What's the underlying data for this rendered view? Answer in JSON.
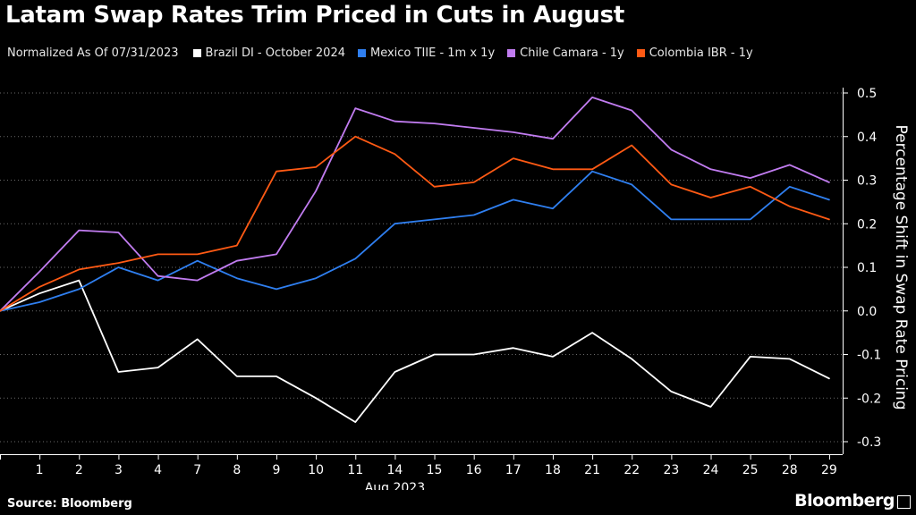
{
  "title": "Latam Swap Rates Trim Priced in Cuts in August",
  "legend_note": "Normalized As Of 07/31/2023",
  "source": "Source: Bloomberg",
  "brand": "Bloomberg",
  "chart_data": {
    "type": "line",
    "title": "Latam Swap Rates Trim Priced in Cuts in August",
    "xlabel": "Aug 2023",
    "ylabel": "Percentage Shift in Swap Rate Pricing",
    "ylim": [
      -0.3,
      0.5
    ],
    "yticks": [
      "0.5",
      "0.4",
      "0.3",
      "0.2",
      "0.1",
      "0.0",
      "-0.1",
      "-0.2",
      "-0.3"
    ],
    "ytick_values": [
      0.5,
      0.4,
      0.3,
      0.2,
      0.1,
      0.0,
      -0.1,
      -0.2,
      -0.3
    ],
    "x": [
      "",
      "1",
      "2",
      "3",
      "4",
      "7",
      "8",
      "9",
      "10",
      "11",
      "14",
      "15",
      "16",
      "17",
      "18",
      "21",
      "22",
      "23",
      "24",
      "25",
      "28",
      "29"
    ],
    "x_labels": [
      "1",
      "2",
      "3",
      "4",
      "7",
      "8",
      "9",
      "10",
      "11",
      "14",
      "15",
      "16",
      "17",
      "18",
      "21",
      "22",
      "23",
      "24",
      "25",
      "28",
      "29"
    ],
    "grid": true,
    "series": [
      {
        "name": "Brazil DI - October 2024",
        "color": "#ffffff",
        "values": [
          0.0,
          0.04,
          0.07,
          -0.14,
          -0.13,
          -0.065,
          -0.15,
          -0.15,
          -0.2,
          -0.255,
          -0.14,
          -0.1,
          -0.1,
          -0.085,
          -0.105,
          -0.05,
          -0.11,
          -0.185,
          -0.22,
          -0.105,
          -0.11,
          -0.155
        ]
      },
      {
        "name": "Mexico TIIE - 1m x 1y",
        "color": "#2f7ff0",
        "values": [
          0.0,
          0.02,
          0.05,
          0.1,
          0.07,
          0.115,
          0.075,
          0.05,
          0.075,
          0.12,
          0.2,
          0.21,
          0.22,
          0.255,
          0.235,
          0.32,
          0.29,
          0.21,
          0.21,
          0.21,
          0.285,
          0.255
        ]
      },
      {
        "name": "Chile Camara - 1y",
        "color": "#c17cf0",
        "values": [
          0.0,
          0.09,
          0.185,
          0.18,
          0.08,
          0.07,
          0.115,
          0.13,
          0.275,
          0.465,
          0.435,
          0.43,
          0.42,
          0.41,
          0.395,
          0.49,
          0.46,
          0.37,
          0.325,
          0.305,
          0.335,
          0.295
        ]
      },
      {
        "name": "Colombia IBR - 1y",
        "color": "#ff5a14",
        "values": [
          0.0,
          0.055,
          0.095,
          0.11,
          0.13,
          0.13,
          0.15,
          0.32,
          0.33,
          0.4,
          0.36,
          0.285,
          0.295,
          0.35,
          0.325,
          0.325,
          0.38,
          0.29,
          0.26,
          0.285,
          0.24,
          0.21
        ]
      }
    ]
  }
}
